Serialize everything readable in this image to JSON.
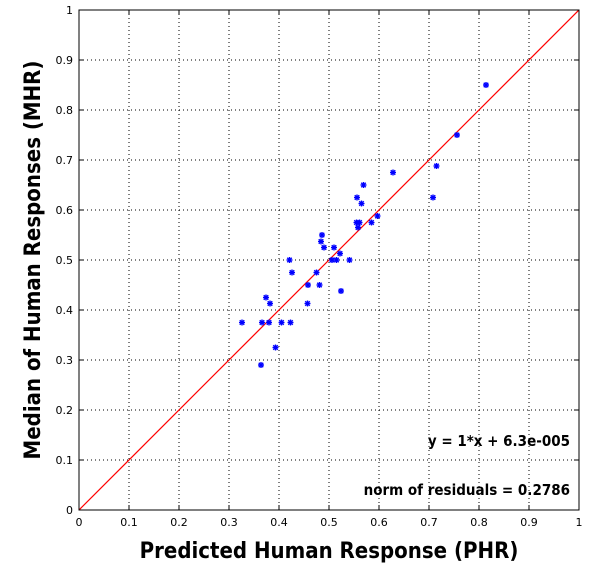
{
  "chart_data": {
    "type": "scatter",
    "title": "",
    "xlabel": "Predicted Human Response (PHR)",
    "ylabel": "Median of Human Responses (MHR)",
    "xlim": [
      0,
      1
    ],
    "ylim": [
      0,
      1
    ],
    "xticks": [
      "0",
      "0.1",
      "0.2",
      "0.3",
      "0.4",
      "0.5",
      "0.6",
      "0.7",
      "0.8",
      "0.9",
      "1"
    ],
    "yticks": [
      "0",
      "0.1",
      "0.2",
      "0.3",
      "0.4",
      "0.5",
      "0.6",
      "0.7",
      "0.8",
      "0.9",
      "1"
    ],
    "grid": true,
    "point_color": "#0000ff",
    "line_color": "#ff0000",
    "fit_line": {
      "slope": 1,
      "intercept": 6.3e-05
    },
    "annotations": [
      "y = 1*x + 6.3e-005",
      "norm of residuals = 0.2786"
    ],
    "points": [
      [
        0.326,
        0.375
      ],
      [
        0.364,
        0.29
      ],
      [
        0.366,
        0.375
      ],
      [
        0.374,
        0.425
      ],
      [
        0.38,
        0.375
      ],
      [
        0.382,
        0.413
      ],
      [
        0.393,
        0.325
      ],
      [
        0.405,
        0.375
      ],
      [
        0.421,
        0.5
      ],
      [
        0.423,
        0.375
      ],
      [
        0.426,
        0.475
      ],
      [
        0.457,
        0.413
      ],
      [
        0.458,
        0.45
      ],
      [
        0.475,
        0.475
      ],
      [
        0.481,
        0.45
      ],
      [
        0.484,
        0.537
      ],
      [
        0.486,
        0.55
      ],
      [
        0.49,
        0.525
      ],
      [
        0.506,
        0.5
      ],
      [
        0.51,
        0.525
      ],
      [
        0.515,
        0.5
      ],
      [
        0.522,
        0.513
      ],
      [
        0.524,
        0.438
      ],
      [
        0.541,
        0.5
      ],
      [
        0.555,
        0.575
      ],
      [
        0.556,
        0.625
      ],
      [
        0.558,
        0.565
      ],
      [
        0.561,
        0.575
      ],
      [
        0.565,
        0.613
      ],
      [
        0.569,
        0.65
      ],
      [
        0.585,
        0.575
      ],
      [
        0.597,
        0.588
      ],
      [
        0.628,
        0.675
      ],
      [
        0.708,
        0.625
      ],
      [
        0.715,
        0.688
      ],
      [
        0.756,
        0.75
      ],
      [
        0.814,
        0.85
      ]
    ]
  }
}
